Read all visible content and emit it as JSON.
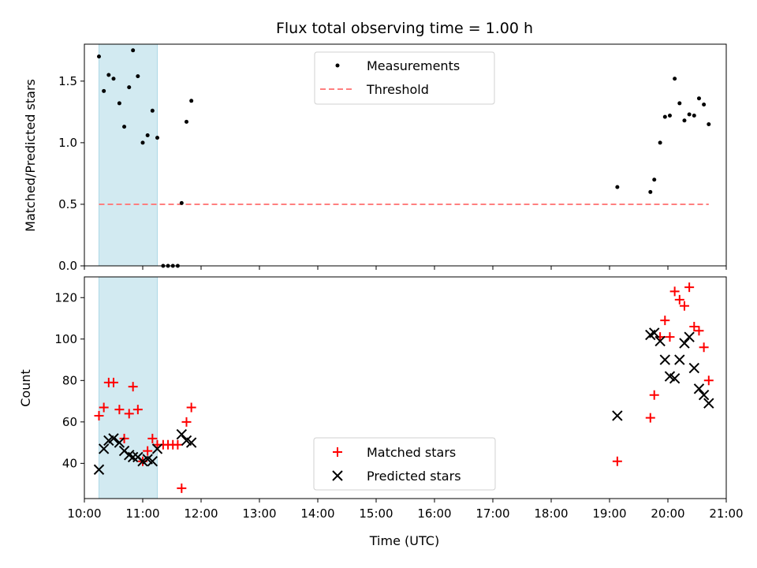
{
  "chart_data": [
    {
      "type": "scatter",
      "title": "Flux total observing time = 1.00 h",
      "xlabel": "",
      "ylabel": "Matched/Predicted stars",
      "xlim": [
        "10:00",
        "21:00"
      ],
      "ylim": [
        0,
        1.8
      ],
      "yticks": [
        0.0,
        0.5,
        1.0,
        1.5
      ],
      "ytick_labels": [
        "0.0",
        "0.5",
        "1.0",
        "1.5"
      ],
      "highlight_span": [
        "10:15",
        "11:15"
      ],
      "highlight_color": "#add8e6",
      "legend_position": "top-center",
      "series": [
        {
          "name": "Measurements",
          "marker": "dot",
          "color": "#000000",
          "points": [
            [
              "10:15",
              1.7
            ],
            [
              "10:20",
              1.42
            ],
            [
              "10:25",
              1.55
            ],
            [
              "10:30",
              1.52
            ],
            [
              "10:36",
              1.32
            ],
            [
              "10:41",
              1.13
            ],
            [
              "10:46",
              1.45
            ],
            [
              "10:50",
              1.75
            ],
            [
              "10:55",
              1.54
            ],
            [
              "11:00",
              1.0
            ],
            [
              "11:05",
              1.06
            ],
            [
              "11:10",
              1.26
            ],
            [
              "11:15",
              1.04
            ],
            [
              "11:21",
              0.0
            ],
            [
              "11:26",
              0.0
            ],
            [
              "11:31",
              0.0
            ],
            [
              "11:36",
              0.0
            ],
            [
              "11:40",
              0.51
            ],
            [
              "11:45",
              1.17
            ],
            [
              "11:50",
              1.34
            ],
            [
              "19:08",
              0.64
            ],
            [
              "19:42",
              0.6
            ],
            [
              "19:46",
              0.7
            ],
            [
              "19:52",
              1.0
            ],
            [
              "19:57",
              1.21
            ],
            [
              "20:02",
              1.22
            ],
            [
              "20:07",
              1.52
            ],
            [
              "20:12",
              1.32
            ],
            [
              "20:17",
              1.18
            ],
            [
              "20:22",
              1.23
            ],
            [
              "20:27",
              1.22
            ],
            [
              "20:32",
              1.36
            ],
            [
              "20:37",
              1.31
            ],
            [
              "20:42",
              1.15
            ]
          ]
        },
        {
          "name": "Threshold",
          "marker": "dashed-line",
          "color": "#ff7f7f",
          "points": [
            [
              "10:15",
              0.5
            ],
            [
              "20:42",
              0.5
            ]
          ]
        }
      ]
    },
    {
      "type": "scatter",
      "title": "",
      "xlabel": "Time (UTC)",
      "ylabel": "Count",
      "xlim": [
        "10:00",
        "21:00"
      ],
      "ylim": [
        23,
        130
      ],
      "yticks": [
        40,
        60,
        80,
        100,
        120
      ],
      "ytick_labels": [
        "40",
        "60",
        "80",
        "100",
        "120"
      ],
      "xticks": [
        "10:00",
        "11:00",
        "12:00",
        "13:00",
        "14:00",
        "15:00",
        "16:00",
        "17:00",
        "18:00",
        "19:00",
        "20:00",
        "21:00"
      ],
      "highlight_span": [
        "10:15",
        "11:15"
      ],
      "highlight_color": "#add8e6",
      "legend_position": "bottom-center",
      "series": [
        {
          "name": "Matched stars",
          "marker": "plus",
          "color": "#ff0000",
          "points": [
            [
              "10:15",
              63
            ],
            [
              "10:20",
              67
            ],
            [
              "10:25",
              79
            ],
            [
              "10:30",
              79
            ],
            [
              "10:36",
              66
            ],
            [
              "10:41",
              52
            ],
            [
              "10:46",
              64
            ],
            [
              "10:50",
              77
            ],
            [
              "10:55",
              66
            ],
            [
              "11:00",
              41
            ],
            [
              "11:05",
              46
            ],
            [
              "11:10",
              52
            ],
            [
              "11:15",
              49
            ],
            [
              "11:21",
              49
            ],
            [
              "11:26",
              49
            ],
            [
              "11:31",
              49
            ],
            [
              "11:36",
              49
            ],
            [
              "11:40",
              28
            ],
            [
              "11:45",
              60
            ],
            [
              "11:50",
              67
            ],
            [
              "19:08",
              41
            ],
            [
              "19:42",
              62
            ],
            [
              "19:46",
              73
            ],
            [
              "19:52",
              101
            ],
            [
              "19:57",
              109
            ],
            [
              "20:02",
              101
            ],
            [
              "20:07",
              123
            ],
            [
              "20:12",
              119
            ],
            [
              "20:17",
              116
            ],
            [
              "20:22",
              125
            ],
            [
              "20:27",
              106
            ],
            [
              "20:32",
              104
            ],
            [
              "20:37",
              96
            ],
            [
              "20:42",
              80
            ]
          ]
        },
        {
          "name": "Predicted stars",
          "marker": "x",
          "color": "#000000",
          "points": [
            [
              "10:15",
              37
            ],
            [
              "10:20",
              47
            ],
            [
              "10:25",
              51
            ],
            [
              "10:30",
              52
            ],
            [
              "10:36",
              50
            ],
            [
              "10:41",
              46
            ],
            [
              "10:46",
              44
            ],
            [
              "10:50",
              43
            ],
            [
              "10:55",
              43
            ],
            [
              "11:00",
              41
            ],
            [
              "11:05",
              42
            ],
            [
              "11:10",
              41
            ],
            [
              "11:15",
              47
            ],
            [
              "11:40",
              54
            ],
            [
              "11:45",
              51
            ],
            [
              "11:50",
              50
            ],
            [
              "19:08",
              63
            ],
            [
              "19:42",
              102
            ],
            [
              "19:46",
              103
            ],
            [
              "19:52",
              99
            ],
            [
              "19:57",
              90
            ],
            [
              "20:02",
              82
            ],
            [
              "20:07",
              81
            ],
            [
              "20:12",
              90
            ],
            [
              "20:17",
              98
            ],
            [
              "20:22",
              101
            ],
            [
              "20:27",
              86
            ],
            [
              "20:32",
              76
            ],
            [
              "20:37",
              73
            ],
            [
              "20:42",
              69
            ]
          ]
        }
      ]
    }
  ]
}
